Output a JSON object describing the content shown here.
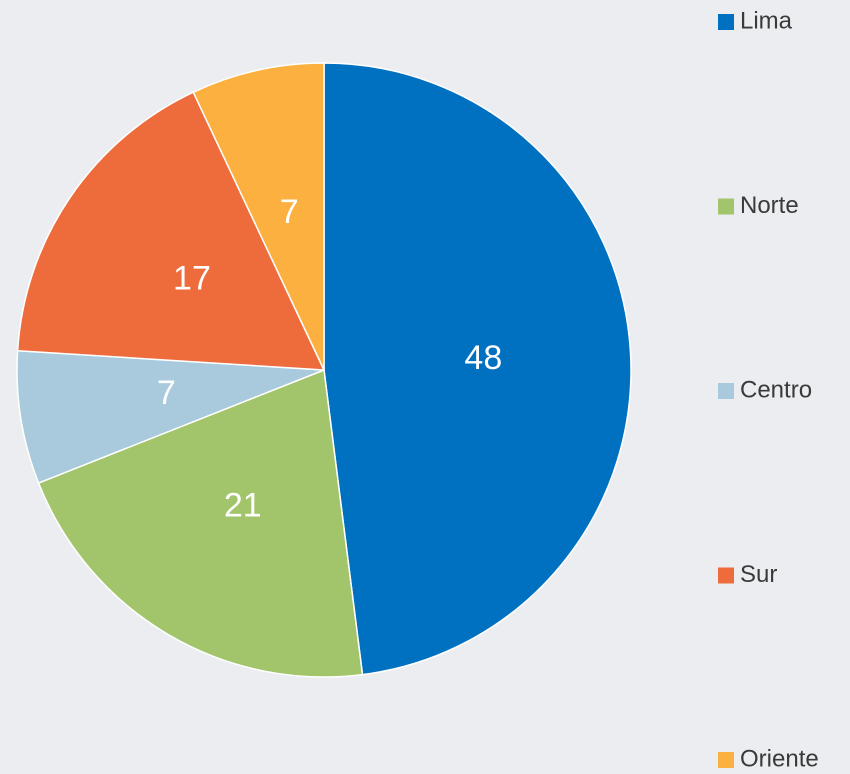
{
  "chart_data": {
    "type": "pie",
    "categories": [
      "Lima",
      "Norte",
      "Centro",
      "Sur",
      "Oriente"
    ],
    "values": [
      48,
      21,
      7,
      17,
      7
    ],
    "colors": [
      "#0070c0",
      "#a2c46a",
      "#a8cadc",
      "#ee6b3b",
      "#fbb040"
    ],
    "legend": "right"
  }
}
